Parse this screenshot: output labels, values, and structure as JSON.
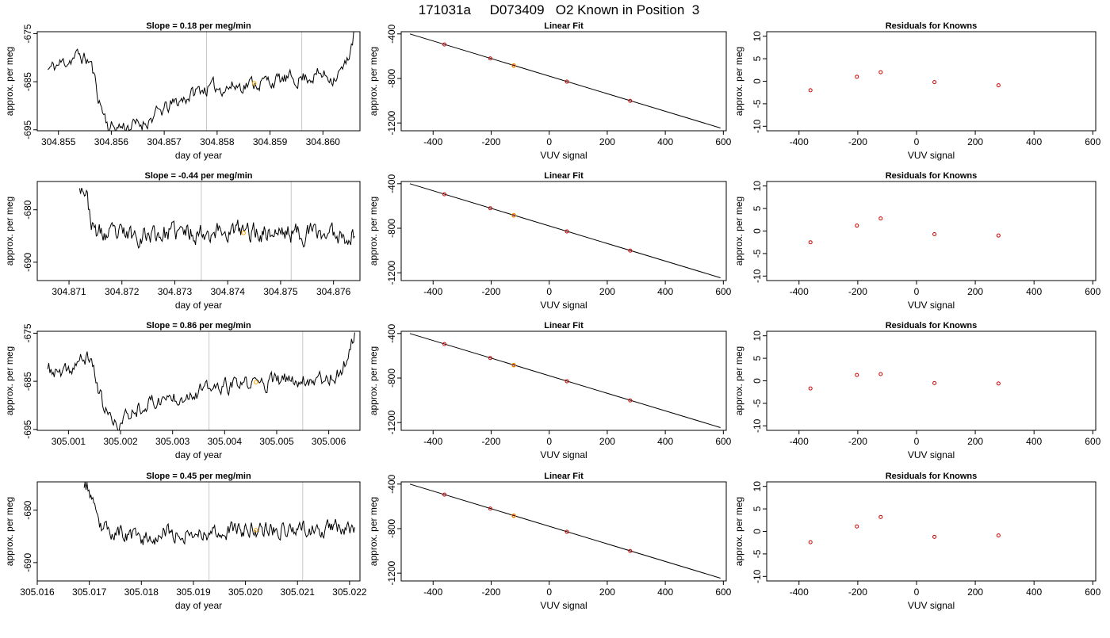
{
  "figure": {
    "title": "171031a     D073409   O2 Known in Position  3"
  },
  "colors": {
    "trace": "#000000",
    "fit_line": "#000000",
    "calibration_points": "#cc0000",
    "unknown_point": "#ffa500",
    "window_lines": "#c8c8c8",
    "axes": "#000000"
  },
  "chart_data": [
    {
      "type": "line",
      "panel": "timeseries",
      "row": 1,
      "title": "Slope =  0.18  per meg/min",
      "xlabel": "day of year",
      "ylabel": "approx. per meg",
      "xlim": [
        304.8546,
        304.8607
      ],
      "ylim": [
        -695.2,
        -674.6
      ],
      "xticks": [
        304.855,
        304.856,
        304.857,
        304.858,
        304.859,
        304.86
      ],
      "xtick_labels": [
        "304.855",
        "304.856",
        "304.857",
        "304.858",
        "304.859",
        "304.860"
      ],
      "yticks": [
        -675,
        -685,
        -695
      ],
      "window_lines": [
        304.8578,
        304.8596
      ],
      "unknown_point": {
        "x": 304.8587,
        "y": -685.3
      },
      "trace": {
        "x_start": 304.8548,
        "x_end": 304.8606,
        "anchors": [
          [
            0,
            -682.5
          ],
          [
            0.05,
            -681
          ],
          [
            0.1,
            -679.5
          ],
          [
            0.14,
            -681
          ],
          [
            0.17,
            -689.5
          ],
          [
            0.2,
            -694.5
          ],
          [
            0.3,
            -694
          ],
          [
            0.4,
            -690
          ],
          [
            0.5,
            -686.5
          ],
          [
            0.6,
            -686
          ],
          [
            0.7,
            -685
          ],
          [
            0.8,
            -684.5
          ],
          [
            0.88,
            -683.5
          ],
          [
            0.93,
            -684
          ],
          [
            0.97,
            -682
          ],
          [
            1,
            -674.6
          ]
        ],
        "amplitude": 1.3,
        "seed": 11
      }
    },
    {
      "type": "line",
      "panel": "fit",
      "row": 1,
      "title": "Linear Fit",
      "xlabel": "VUV signal",
      "ylabel": "approx. per meg",
      "xlim": [
        -510,
        610
      ],
      "ylim": [
        -1270,
        -380
      ],
      "xticks": [
        -400,
        -200,
        0,
        200,
        400,
        600
      ],
      "yticks": [
        -400,
        -800,
        -1200
      ],
      "line": [
        [
          -480,
          -400
        ],
        [
          590,
          -1245
        ]
      ],
      "points": [
        {
          "x": -361,
          "y": -495
        },
        {
          "x": -203,
          "y": -620
        },
        {
          "x": -122,
          "y": -684
        },
        {
          "x": 61,
          "y": -829
        },
        {
          "x": 279,
          "y": -1001
        }
      ],
      "unknown_point": {
        "x": -122,
        "y": -684
      }
    },
    {
      "type": "scatter",
      "panel": "residuals",
      "row": 1,
      "title": "Residuals for Knowns",
      "xlabel": "VUV signal",
      "ylabel": "approx. per meg",
      "xlim": [
        -510,
        610
      ],
      "ylim": [
        -11,
        11
      ],
      "xticks": [
        -400,
        -200,
        0,
        200,
        400,
        600
      ],
      "yticks": [
        -10,
        -5,
        0,
        5,
        10
      ],
      "points": [
        {
          "x": -361,
          "y": -2.0
        },
        {
          "x": -203,
          "y": 1.0
        },
        {
          "x": -122,
          "y": 2.0
        },
        {
          "x": 61,
          "y": -0.2
        },
        {
          "x": 279,
          "y": -0.9
        }
      ]
    },
    {
      "type": "line",
      "panel": "timeseries",
      "row": 2,
      "title": "Slope =  -0.44  per meg/min",
      "xlabel": "day of year",
      "ylabel": "approx. per meg",
      "xlim": [
        304.8704,
        304.8765
      ],
      "ylim": [
        -693.5,
        -674.6
      ],
      "xticks": [
        304.871,
        304.872,
        304.873,
        304.874,
        304.875,
        304.876
      ],
      "xtick_labels": [
        "304.871",
        "304.872",
        "304.873",
        "304.874",
        "304.875",
        "304.876"
      ],
      "yticks": [
        -680,
        -690
      ],
      "window_lines": [
        304.8735,
        304.8752
      ],
      "unknown_point": {
        "x": 304.8743,
        "y": -684.4
      },
      "trace": {
        "x_start": 304.8712,
        "x_end": 304.8764,
        "anchors": [
          [
            0,
            -674.6
          ],
          [
            0.02,
            -676
          ],
          [
            0.05,
            -684
          ],
          [
            0.1,
            -685
          ],
          [
            0.3,
            -684.5
          ],
          [
            0.5,
            -684
          ],
          [
            0.7,
            -684.3
          ],
          [
            0.9,
            -684.5
          ],
          [
            1,
            -684.8
          ]
        ],
        "amplitude": 1.6,
        "seed": 23
      }
    },
    {
      "type": "line",
      "panel": "fit",
      "row": 2,
      "title": "Linear Fit",
      "xlabel": "VUV signal",
      "ylabel": "approx. per meg",
      "xlim": [
        -510,
        610
      ],
      "ylim": [
        -1270,
        -380
      ],
      "xticks": [
        -400,
        -200,
        0,
        200,
        400,
        600
      ],
      "yticks": [
        -400,
        -800,
        -1200
      ],
      "line": [
        [
          -480,
          -400
        ],
        [
          590,
          -1245
        ]
      ],
      "points": [
        {
          "x": -361,
          "y": -495
        },
        {
          "x": -203,
          "y": -620
        },
        {
          "x": -122,
          "y": -684
        },
        {
          "x": 61,
          "y": -829
        },
        {
          "x": 279,
          "y": -1001
        }
      ],
      "unknown_point": {
        "x": -122,
        "y": -684
      }
    },
    {
      "type": "scatter",
      "panel": "residuals",
      "row": 2,
      "title": "Residuals for Knowns",
      "xlabel": "VUV signal",
      "ylabel": "approx. per meg",
      "xlim": [
        -510,
        610
      ],
      "ylim": [
        -11,
        11
      ],
      "xticks": [
        -400,
        -200,
        0,
        200,
        400,
        600
      ],
      "yticks": [
        -10,
        -5,
        0,
        5,
        10
      ],
      "points": [
        {
          "x": -361,
          "y": -2.5
        },
        {
          "x": -203,
          "y": 1.2
        },
        {
          "x": -122,
          "y": 2.8
        },
        {
          "x": 61,
          "y": -0.7
        },
        {
          "x": 279,
          "y": -1.0
        }
      ]
    },
    {
      "type": "line",
      "panel": "timeseries",
      "row": 3,
      "title": "Slope =  0.86  per meg/min",
      "xlabel": "day of year",
      "ylabel": "approx. per meg",
      "xlim": [
        305.0004,
        305.0066
      ],
      "ylim": [
        -695.2,
        -674.6
      ],
      "xticks": [
        305.001,
        305.002,
        305.003,
        305.004,
        305.005,
        305.006
      ],
      "xtick_labels": [
        "305.001",
        "305.002",
        "305.003",
        "305.004",
        "305.005",
        "305.006"
      ],
      "yticks": [
        -675,
        -685,
        -695
      ],
      "window_lines": [
        305.0037,
        305.0055
      ],
      "unknown_point": {
        "x": 305.0046,
        "y": -685.2
      },
      "trace": {
        "x_start": 305.0006,
        "x_end": 305.0065,
        "anchors": [
          [
            0,
            -682.5
          ],
          [
            0.05,
            -684
          ],
          [
            0.1,
            -681
          ],
          [
            0.14,
            -680
          ],
          [
            0.18,
            -690
          ],
          [
            0.22,
            -694.5
          ],
          [
            0.3,
            -690
          ],
          [
            0.45,
            -687.5
          ],
          [
            0.6,
            -686
          ],
          [
            0.75,
            -685
          ],
          [
            0.85,
            -684.5
          ],
          [
            0.92,
            -684
          ],
          [
            0.96,
            -683
          ],
          [
            1,
            -674.6
          ]
        ],
        "amplitude": 1.4,
        "seed": 37
      }
    },
    {
      "type": "line",
      "panel": "fit",
      "row": 3,
      "title": "Linear Fit",
      "xlabel": "VUV signal",
      "ylabel": "approx. per meg",
      "xlim": [
        -510,
        610
      ],
      "ylim": [
        -1270,
        -380
      ],
      "xticks": [
        -400,
        -200,
        0,
        200,
        400,
        600
      ],
      "yticks": [
        -400,
        -800,
        -1200
      ],
      "line": [
        [
          -480,
          -400
        ],
        [
          590,
          -1245
        ]
      ],
      "points": [
        {
          "x": -361,
          "y": -495
        },
        {
          "x": -203,
          "y": -620
        },
        {
          "x": -122,
          "y": -684
        },
        {
          "x": 61,
          "y": -829
        },
        {
          "x": 279,
          "y": -1001
        }
      ],
      "unknown_point": {
        "x": -122,
        "y": -684
      }
    },
    {
      "type": "scatter",
      "panel": "residuals",
      "row": 3,
      "title": "Residuals for Knowns",
      "xlabel": "VUV signal",
      "ylabel": "approx. per meg",
      "xlim": [
        -510,
        610
      ],
      "ylim": [
        -11,
        11
      ],
      "xticks": [
        -400,
        -200,
        0,
        200,
        400,
        600
      ],
      "yticks": [
        -10,
        -5,
        0,
        5,
        10
      ],
      "points": [
        {
          "x": -361,
          "y": -1.7
        },
        {
          "x": -203,
          "y": 1.3
        },
        {
          "x": -122,
          "y": 1.5
        },
        {
          "x": 61,
          "y": -0.5
        },
        {
          "x": 279,
          "y": -0.6
        }
      ]
    },
    {
      "type": "line",
      "panel": "timeseries",
      "row": 4,
      "title": "Slope =  0.45  per meg/min",
      "xlabel": "day of year",
      "ylabel": "approx. per meg",
      "xlim": [
        305.016,
        305.0222
      ],
      "ylim": [
        -693.5,
        -674.6
      ],
      "xticks": [
        305.016,
        305.017,
        305.018,
        305.019,
        305.02,
        305.021,
        305.022
      ],
      "xtick_labels": [
        "305.016",
        "305.017",
        "305.018",
        "305.019",
        "305.020",
        "305.021",
        "305.022"
      ],
      "yticks": [
        -680,
        -690
      ],
      "window_lines": [
        305.0193,
        305.0211
      ],
      "unknown_point": {
        "x": 305.0202,
        "y": -683.8
      },
      "trace": {
        "x_start": 305.0169,
        "x_end": 305.0221,
        "anchors": [
          [
            0,
            -674.6
          ],
          [
            0.02,
            -676
          ],
          [
            0.05,
            -683
          ],
          [
            0.1,
            -684
          ],
          [
            0.2,
            -685.5
          ],
          [
            0.3,
            -684.5
          ],
          [
            0.5,
            -684
          ],
          [
            0.7,
            -683.5
          ],
          [
            0.9,
            -683.5
          ],
          [
            1,
            -683
          ]
        ],
        "amplitude": 1.3,
        "seed": 53
      }
    },
    {
      "type": "line",
      "panel": "fit",
      "row": 4,
      "title": "Linear Fit",
      "xlabel": "VUV signal",
      "ylabel": "approx. per meg",
      "xlim": [
        -510,
        610
      ],
      "ylim": [
        -1270,
        -380
      ],
      "xticks": [
        -400,
        -200,
        0,
        200,
        400,
        600
      ],
      "yticks": [
        -400,
        -800,
        -1200
      ],
      "line": [
        [
          -480,
          -400
        ],
        [
          590,
          -1245
        ]
      ],
      "points": [
        {
          "x": -361,
          "y": -495
        },
        {
          "x": -203,
          "y": -620
        },
        {
          "x": -122,
          "y": -684
        },
        {
          "x": 61,
          "y": -829
        },
        {
          "x": 279,
          "y": -1001
        }
      ],
      "unknown_point": {
        "x": -122,
        "y": -684
      }
    },
    {
      "type": "scatter",
      "panel": "residuals",
      "row": 4,
      "title": "Residuals for Knowns",
      "xlabel": "VUV signal",
      "ylabel": "approx. per meg",
      "xlim": [
        -510,
        610
      ],
      "ylim": [
        -11,
        11
      ],
      "xticks": [
        -400,
        -200,
        0,
        200,
        400,
        600
      ],
      "yticks": [
        -10,
        -5,
        0,
        5,
        10
      ],
      "points": [
        {
          "x": -361,
          "y": -2.4
        },
        {
          "x": -203,
          "y": 1.1
        },
        {
          "x": -122,
          "y": 3.2
        },
        {
          "x": 61,
          "y": -1.2
        },
        {
          "x": 279,
          "y": -0.9
        }
      ]
    }
  ]
}
